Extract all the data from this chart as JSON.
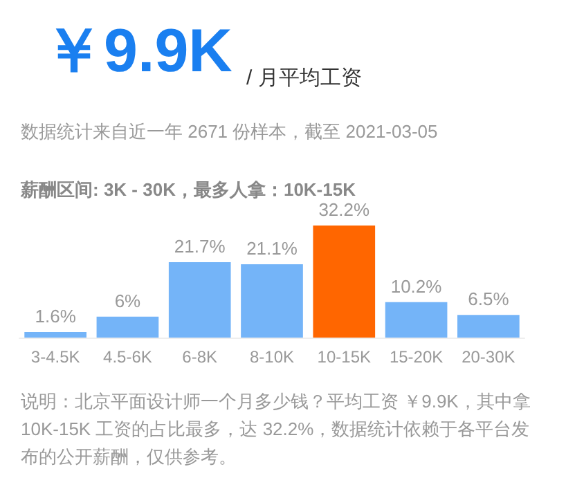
{
  "chart_data": {
    "type": "bar",
    "title": "￥9.9K",
    "subtitle": "/ 月平均工资",
    "annotations": [
      "数据统计来自近一年 2671 份样本，截至 2021-03-05",
      "薪酬区间: 3K - 30K，最多人拿：10K-15K",
      "说明：北京平面设计师一个月多少钱？平均工资 ￥9.9K，其中拿 10K-15K 工资的占比最多，达 32.2%，数据统计依赖于各平台发布的公开薪酬，仅供参考。"
    ],
    "categories": [
      "3-4.5K",
      "4.5-6K",
      "6-8K",
      "8-10K",
      "10-15K",
      "15-20K",
      "20-30K"
    ],
    "values": [
      1.6,
      6,
      21.7,
      21.1,
      32.2,
      10.2,
      6.5
    ],
    "value_labels": [
      "1.6%",
      "6%",
      "21.7%",
      "21.1%",
      "32.2%",
      "10.2%",
      "6.5%"
    ],
    "colors": [
      "#74b4f8",
      "#74b4f8",
      "#74b4f8",
      "#74b4f8",
      "#ff6600",
      "#74b4f8",
      "#74b4f8"
    ]
  }
}
